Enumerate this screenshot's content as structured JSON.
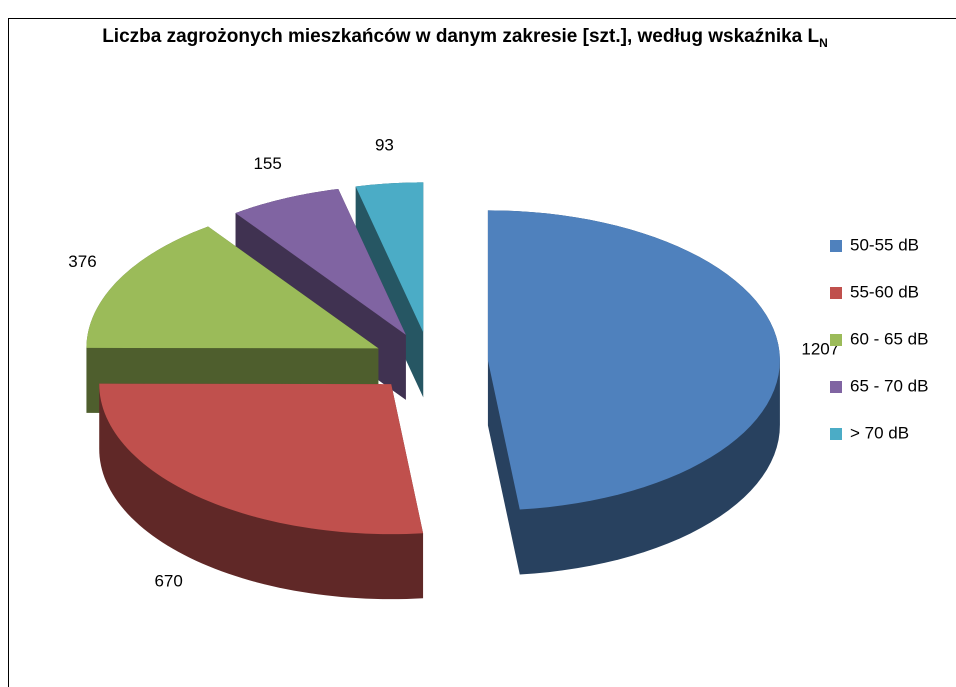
{
  "chart_data": {
    "type": "pie3d",
    "title": "Liczba zagrożonych mieszkańców w danym zakresie [szt.], według wskaźnika L",
    "title_subscript": "N",
    "categories": [
      "50-55 dB",
      "55-60 dB",
      "60 - 65 dB",
      "65 - 70 dB",
      "> 70 dB"
    ],
    "values": [
      1207,
      670,
      376,
      155,
      93
    ],
    "colors": [
      "#4f81bd",
      "#c0504d",
      "#9bbb59",
      "#8064a2",
      "#4bacc6"
    ],
    "legend": "right"
  }
}
